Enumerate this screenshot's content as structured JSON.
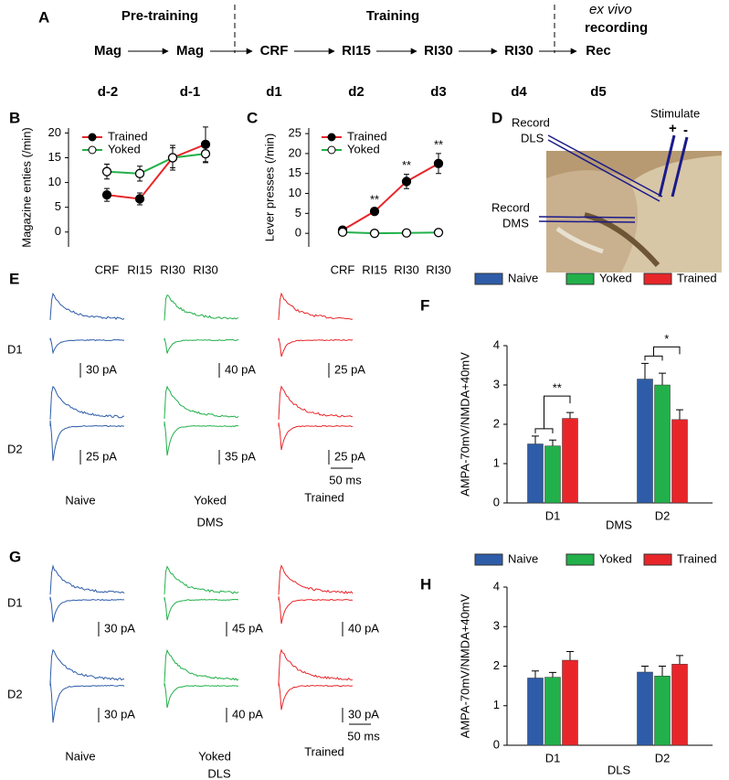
{
  "panel_a": {
    "label": "A",
    "phase_pre": "Pre-training",
    "phase_training": "Training",
    "phase_exvivo": "ex vivo",
    "phase_recording": "recording",
    "steps": [
      "Mag",
      "Mag",
      "CRF",
      "RI15",
      "RI30",
      "RI30",
      "Rec"
    ],
    "days": [
      "d-2",
      "d-1",
      "d1",
      "d2",
      "d3",
      "d4",
      "d5"
    ]
  },
  "chart_data": [
    {
      "label": "B",
      "type": "line",
      "ylabel": "Magazine enties (/min)",
      "categories": [
        "CRF",
        "RI15",
        "RI30",
        "RI30"
      ],
      "ylim": [
        -3,
        21
      ],
      "yticks": [
        0,
        5,
        10,
        15,
        20
      ],
      "legend": "top-left",
      "series": [
        {
          "name": "Trained",
          "color": "#e8262a",
          "marker": "filled",
          "values": [
            7.5,
            6.7,
            15,
            17.7
          ],
          "errors": [
            1.3,
            1.2,
            2.5,
            3.5
          ]
        },
        {
          "name": "Yoked",
          "color": "#22b04a",
          "marker": "open",
          "values": [
            12.2,
            11.8,
            15,
            15.8
          ],
          "errors": [
            1.5,
            1.5,
            2,
            1.8
          ]
        }
      ]
    },
    {
      "label": "C",
      "type": "line",
      "ylabel": "Lever presses (/min)",
      "categories": [
        "CRF",
        "RI15",
        "RI30",
        "RI30"
      ],
      "ylim": [
        -3.4,
        26.4
      ],
      "yticks": [
        0,
        5,
        10,
        15,
        20,
        25
      ],
      "legend": "top-left",
      "series": [
        {
          "name": "Trained",
          "color": "#e8262a",
          "marker": "filled",
          "values": [
            0.8,
            5.5,
            13,
            17.5
          ],
          "errors": [
            0.4,
            0.7,
            1.8,
            2.5
          ]
        },
        {
          "name": "Yoked",
          "color": "#22b04a",
          "marker": "open",
          "values": [
            0.3,
            0,
            0.1,
            0.2
          ],
          "errors": [
            0.2,
            0.2,
            0.2,
            0.2
          ]
        }
      ],
      "significance": [
        null,
        "**",
        "**",
        "**"
      ]
    },
    {
      "label": "F",
      "type": "bar",
      "ylabel": "AMPA-70mV/NMDA+40mV",
      "xlabel": "DMS",
      "categories": [
        "D1",
        "D2"
      ],
      "ylim": [
        0,
        4
      ],
      "yticks": [
        0,
        1,
        2,
        3,
        4
      ],
      "legend": "top",
      "series": [
        {
          "name": "Naive",
          "color": "#2e5ca8",
          "values": [
            1.5,
            3.15
          ],
          "errors": [
            0.2,
            0.4
          ]
        },
        {
          "name": "Yoked",
          "color": "#22b04a",
          "values": [
            1.45,
            3.0
          ],
          "errors": [
            0.15,
            0.3
          ]
        },
        {
          "name": "Trained",
          "color": "#e8262a",
          "values": [
            2.15,
            2.12
          ],
          "errors": [
            0.15,
            0.25
          ]
        }
      ],
      "brackets": [
        {
          "category": 0,
          "text": "**"
        },
        {
          "category": 1,
          "text": "*"
        }
      ]
    },
    {
      "label": "H",
      "type": "bar",
      "ylabel": "AMPA-70mV/NMDA+40mV",
      "xlabel": "DLS",
      "categories": [
        "D1",
        "D2"
      ],
      "ylim": [
        0,
        4
      ],
      "yticks": [
        0,
        1,
        2,
        3,
        4
      ],
      "legend": "top",
      "series": [
        {
          "name": "Naive",
          "color": "#2e5ca8",
          "values": [
            1.7,
            1.85
          ],
          "errors": [
            0.18,
            0.15
          ]
        },
        {
          "name": "Yoked",
          "color": "#22b04a",
          "values": [
            1.72,
            1.75
          ],
          "errors": [
            0.12,
            0.25
          ]
        },
        {
          "name": "Trained",
          "color": "#e8262a",
          "values": [
            2.15,
            2.05
          ],
          "errors": [
            0.22,
            0.22
          ]
        }
      ]
    }
  ],
  "panel_d": {
    "label": "D",
    "record_dls": [
      "Record",
      "DLS"
    ],
    "record_dms": [
      "Record",
      "DMS"
    ],
    "stimulate": "Stimulate",
    "plus": "+",
    "minus": "-"
  },
  "panel_e": {
    "label": "E",
    "rows": [
      "D1",
      "D2"
    ],
    "scales": [
      [
        "30 pA",
        "40 pA",
        "25 pA"
      ],
      [
        "25 pA",
        "35 pA",
        "25 pA"
      ]
    ],
    "time_scale": "50 ms",
    "groups": [
      "Naive",
      "Yoked",
      "Trained"
    ],
    "region": "DMS"
  },
  "panel_g": {
    "label": "G",
    "rows": [
      "D1",
      "D2"
    ],
    "scales": [
      [
        "30 pA",
        "45 pA",
        "40 pA"
      ],
      [
        "30 pA",
        "40 pA",
        "30 pA"
      ]
    ],
    "time_scale": "50 ms",
    "groups": [
      "Naive",
      "Yoked",
      "Trained"
    ],
    "region": "DLS"
  }
}
